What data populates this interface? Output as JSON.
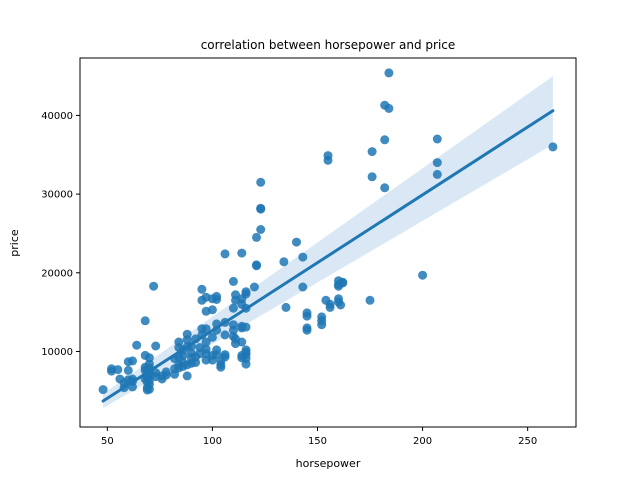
{
  "chart_data": {
    "type": "scatter",
    "title": "correlation between horsepower and price",
    "xlabel": "horsepower",
    "ylabel": "price",
    "xlim": [
      37,
      273
    ],
    "ylim": [
      400,
      47300
    ],
    "xticks": [
      50,
      100,
      150,
      200,
      250
    ],
    "yticks": [
      10000,
      20000,
      30000,
      40000
    ],
    "grid": false,
    "legend": "none",
    "colors": {
      "points": "#1f77b4",
      "line": "#1f77b4",
      "band": "#c6dbef"
    },
    "regression": {
      "x": [
        48,
        262
      ],
      "y": [
        3700,
        40600
      ],
      "ci_lower_at_end": [
        2800,
        36300
      ],
      "ci_upper_at_end": [
        4600,
        45000
      ]
    },
    "points": [
      [
        48,
        5150
      ],
      [
        52,
        7800
      ],
      [
        52,
        7500
      ],
      [
        55,
        7700
      ],
      [
        56,
        6500
      ],
      [
        58,
        5400
      ],
      [
        58,
        6000
      ],
      [
        60,
        6400
      ],
      [
        60,
        7600
      ],
      [
        60,
        8700
      ],
      [
        62,
        5500
      ],
      [
        62,
        6200
      ],
      [
        62,
        6500
      ],
      [
        62,
        8800
      ],
      [
        64,
        10800
      ],
      [
        68,
        6500
      ],
      [
        68,
        7600
      ],
      [
        68,
        8000
      ],
      [
        68,
        9500
      ],
      [
        68,
        13900
      ],
      [
        69,
        5100
      ],
      [
        69,
        5400
      ],
      [
        69,
        6100
      ],
      [
        69,
        6700
      ],
      [
        69,
        7100
      ],
      [
        69,
        7500
      ],
      [
        70,
        5200
      ],
      [
        70,
        5800
      ],
      [
        70,
        6300
      ],
      [
        70,
        6900
      ],
      [
        70,
        7200
      ],
      [
        70,
        7900
      ],
      [
        70,
        8400
      ],
      [
        70,
        9200
      ],
      [
        72,
        18300
      ],
      [
        73,
        6800
      ],
      [
        73,
        7300
      ],
      [
        73,
        10700
      ],
      [
        76,
        6500
      ],
      [
        76,
        6900
      ],
      [
        78,
        7000
      ],
      [
        78,
        7400
      ],
      [
        82,
        7100
      ],
      [
        82,
        7800
      ],
      [
        82,
        9100
      ],
      [
        84,
        7900
      ],
      [
        84,
        8300
      ],
      [
        84,
        9300
      ],
      [
        84,
        10500
      ],
      [
        84,
        11200
      ],
      [
        86,
        8100
      ],
      [
        86,
        8600
      ],
      [
        86,
        9500
      ],
      [
        86,
        10200
      ],
      [
        88,
        6900
      ],
      [
        88,
        8300
      ],
      [
        88,
        10600
      ],
      [
        88,
        11500
      ],
      [
        88,
        12200
      ],
      [
        90,
        8500
      ],
      [
        90,
        9200
      ],
      [
        90,
        9800
      ],
      [
        90,
        10700
      ],
      [
        92,
        8600
      ],
      [
        92,
        9300
      ],
      [
        92,
        11600
      ],
      [
        94,
        9700
      ],
      [
        94,
        10500
      ],
      [
        95,
        12100
      ],
      [
        95,
        12900
      ],
      [
        95,
        16500
      ],
      [
        95,
        17900
      ],
      [
        97,
        8900
      ],
      [
        97,
        9700
      ],
      [
        97,
        10300
      ],
      [
        97,
        11200
      ],
      [
        97,
        12900
      ],
      [
        97,
        15100
      ],
      [
        97,
        16900
      ],
      [
        100,
        8900
      ],
      [
        100,
        9500
      ],
      [
        100,
        11800
      ],
      [
        100,
        15300
      ],
      [
        100,
        16700
      ],
      [
        102,
        9600
      ],
      [
        102,
        10200
      ],
      [
        102,
        12700
      ],
      [
        102,
        13500
      ],
      [
        102,
        16600
      ],
      [
        102,
        17000
      ],
      [
        104,
        8000
      ],
      [
        104,
        8300
      ],
      [
        104,
        8800
      ],
      [
        106,
        9300
      ],
      [
        106,
        9600
      ],
      [
        106,
        12100
      ],
      [
        106,
        13700
      ],
      [
        106,
        22400
      ],
      [
        110,
        11900
      ],
      [
        110,
        12700
      ],
      [
        110,
        13400
      ],
      [
        110,
        15500
      ],
      [
        110,
        18900
      ],
      [
        111,
        11000
      ],
      [
        111,
        11600
      ],
      [
        111,
        16500
      ],
      [
        111,
        17200
      ],
      [
        114,
        9200
      ],
      [
        114,
        9500
      ],
      [
        114,
        11200
      ],
      [
        114,
        13000
      ],
      [
        114,
        13200
      ],
      [
        114,
        16000
      ],
      [
        114,
        16700
      ],
      [
        114,
        22500
      ],
      [
        116,
        8400
      ],
      [
        116,
        9100
      ],
      [
        116,
        9600
      ],
      [
        116,
        9900
      ],
      [
        116,
        10200
      ],
      [
        116,
        13100
      ],
      [
        116,
        15500
      ],
      [
        116,
        17300
      ],
      [
        116,
        17600
      ],
      [
        120,
        18200
      ],
      [
        121,
        20900
      ],
      [
        121,
        21000
      ],
      [
        121,
        24500
      ],
      [
        123,
        25500
      ],
      [
        123,
        28100
      ],
      [
        123,
        28200
      ],
      [
        123,
        31500
      ],
      [
        134,
        21400
      ],
      [
        135,
        15600
      ],
      [
        140,
        23900
      ],
      [
        143,
        18200
      ],
      [
        143,
        22000
      ],
      [
        145,
        12700
      ],
      [
        145,
        13000
      ],
      [
        145,
        14500
      ],
      [
        145,
        14900
      ],
      [
        152,
        13400
      ],
      [
        152,
        13900
      ],
      [
        152,
        14400
      ],
      [
        154,
        16500
      ],
      [
        155,
        34300
      ],
      [
        155,
        34900
      ],
      [
        156,
        15600
      ],
      [
        156,
        16000
      ],
      [
        160,
        16300
      ],
      [
        160,
        16700
      ],
      [
        160,
        18300
      ],
      [
        160,
        18500
      ],
      [
        160,
        19000
      ],
      [
        161,
        15900
      ],
      [
        162,
        18700
      ],
      [
        162,
        18800
      ],
      [
        175,
        16500
      ],
      [
        176,
        32200
      ],
      [
        176,
        35400
      ],
      [
        182,
        30800
      ],
      [
        182,
        36900
      ],
      [
        182,
        41300
      ],
      [
        184,
        45400
      ],
      [
        184,
        40900
      ],
      [
        200,
        19700
      ],
      [
        207,
        32500
      ],
      [
        207,
        34000
      ],
      [
        207,
        37000
      ],
      [
        262,
        36000
      ]
    ]
  }
}
